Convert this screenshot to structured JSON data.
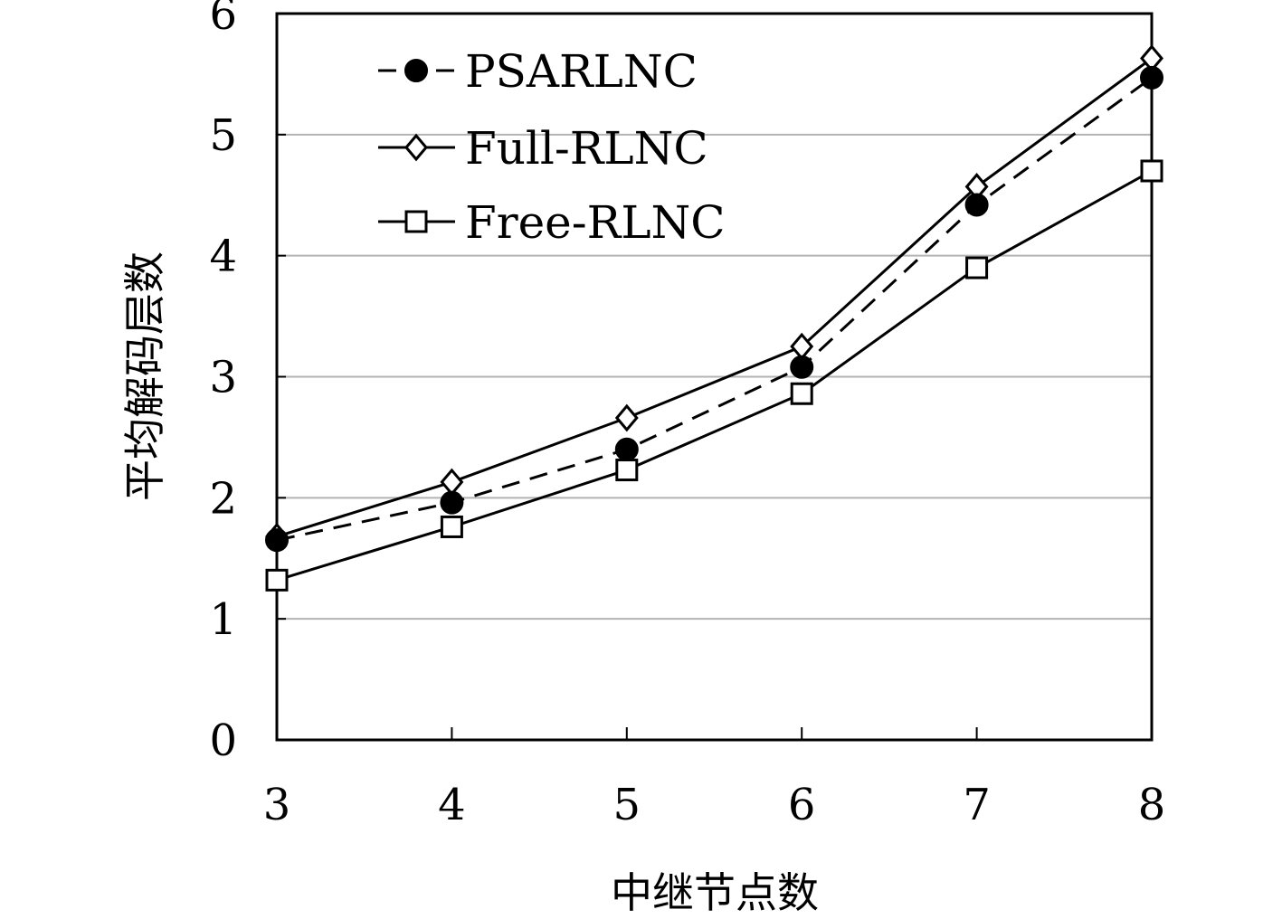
{
  "chart_data": {
    "type": "line",
    "x": [
      3,
      4,
      5,
      6,
      7,
      8
    ],
    "xlabel": "中继节点数",
    "ylabel": "平均解码层数",
    "xlim": [
      3,
      8
    ],
    "ylim": [
      0,
      6
    ],
    "yticks": [
      0,
      1,
      2,
      3,
      4,
      5,
      6
    ],
    "xticks": [
      3,
      4,
      5,
      6,
      7,
      8
    ],
    "grid": "horizontal",
    "legend_position": "top-left",
    "series": [
      {
        "name": "PSARLNC",
        "values": [
          1.65,
          1.96,
          2.4,
          3.08,
          4.42,
          5.47
        ],
        "line": "dashed",
        "marker": "filled-circle",
        "color": "#000000"
      },
      {
        "name": "Full-RLNC",
        "values": [
          1.68,
          2.13,
          2.66,
          3.25,
          4.57,
          5.63
        ],
        "line": "solid",
        "marker": "open-diamond",
        "color": "#000000"
      },
      {
        "name": "Free-RLNC",
        "values": [
          1.32,
          1.76,
          2.23,
          2.86,
          3.9,
          4.7
        ],
        "line": "solid",
        "marker": "open-square",
        "color": "#000000"
      }
    ]
  }
}
